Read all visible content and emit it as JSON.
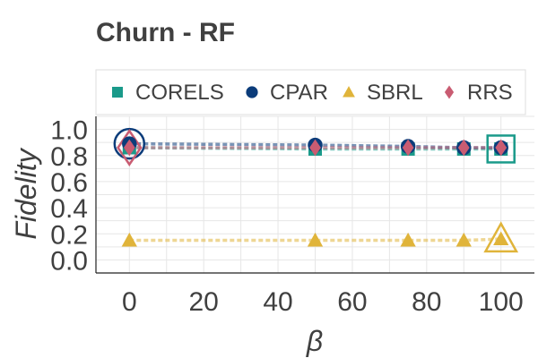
{
  "chart_data": {
    "type": "line",
    "title": "Churn - RF",
    "xlabel": "β",
    "ylabel": "Fidelity",
    "xlim": [
      -9,
      109
    ],
    "ylim": [
      -0.1,
      1.1
    ],
    "xticks": [
      "0",
      "20",
      "40",
      "60",
      "80",
      "100"
    ],
    "yticks": [
      "0.0",
      "0.2",
      "0.4",
      "0.6",
      "0.8",
      "1.0"
    ],
    "grid": true,
    "legend": "top",
    "x": [
      0,
      50,
      75,
      90,
      100
    ],
    "series": [
      {
        "name": "CORELS",
        "marker": "square",
        "color": "#1a9a8a",
        "values": [
          0.86,
          0.85,
          0.85,
          0.85,
          0.85
        ],
        "best_index": 4
      },
      {
        "name": "CPAR",
        "marker": "circle",
        "color": "#0b3c7a",
        "values": [
          0.89,
          0.88,
          0.87,
          0.86,
          0.86
        ],
        "best_index": 0
      },
      {
        "name": "SBRL",
        "marker": "triangle",
        "color": "#e0b43a",
        "values": [
          0.15,
          0.15,
          0.15,
          0.15,
          0.16
        ],
        "best_index": 4
      },
      {
        "name": "RRS",
        "marker": "diamond",
        "color": "#c95c72",
        "values": [
          0.86,
          0.86,
          0.86,
          0.86,
          0.86
        ],
        "best_index": 0
      }
    ]
  }
}
